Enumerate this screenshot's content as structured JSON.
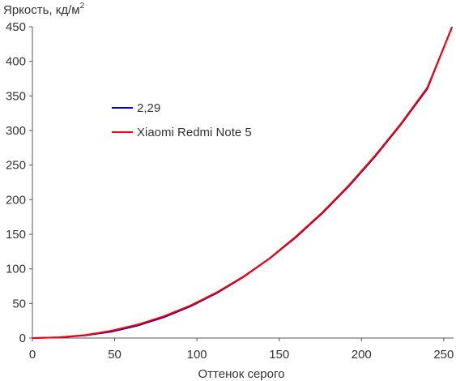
{
  "chart_data": {
    "type": "line",
    "title": "",
    "ylabel": "Яркость, кд/м",
    "ylabel_superscript": "2",
    "xlabel": "Оттенок серого",
    "xlim": [
      0,
      255
    ],
    "ylim": [
      0,
      450
    ],
    "xticks": [
      0,
      50,
      100,
      150,
      200,
      250
    ],
    "yticks": [
      0,
      50,
      100,
      150,
      200,
      250,
      300,
      350,
      400,
      450
    ],
    "grid": false,
    "legend_position": "upper-left-inside",
    "series": [
      {
        "name": "2,29",
        "color": "#0000cc",
        "x": [
          0,
          16,
          32,
          48,
          64,
          80,
          96,
          112,
          128,
          144,
          160,
          176,
          192,
          208,
          224,
          240,
          255
        ],
        "y": [
          0,
          0.8,
          3.8,
          9.3,
          18.0,
          30.1,
          45.7,
          64.9,
          87.9,
          114.6,
          145.3,
          180.0,
          218.7,
          261.7,
          308.8,
          360.2,
          449.7
        ]
      },
      {
        "name": "Xiaomi Redmi Note 5",
        "color": "#ff0000",
        "x": [
          0,
          16,
          32,
          48,
          64,
          80,
          96,
          112,
          128,
          144,
          160,
          176,
          192,
          208,
          224,
          240,
          255
        ],
        "y": [
          0,
          1.0,
          4.2,
          10.5,
          19.5,
          31.5,
          47.0,
          66.0,
          88.5,
          115.0,
          146.5,
          181.0,
          220.0,
          263.0,
          310.0,
          362.0,
          449.0
        ]
      }
    ]
  }
}
